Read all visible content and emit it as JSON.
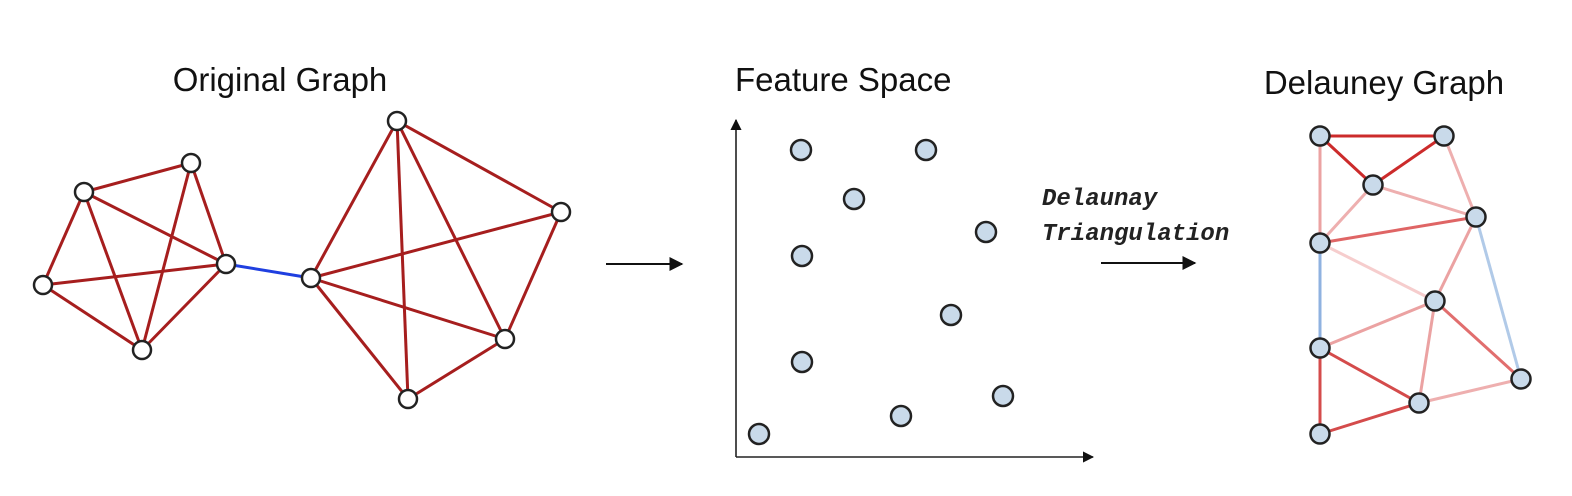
{
  "titles": {
    "original": "Original Graph",
    "feature": "Feature Space",
    "delaunay": "Delauney Graph"
  },
  "operation": {
    "line1": "Delaunay",
    "line2": "Triangulation"
  },
  "colors": {
    "edge_red": "#a61e1e",
    "bridge_blue": "#1f3fe0",
    "node_fill_light": "#c9daea",
    "node_stroke": "#222222",
    "arrow": "#111111"
  },
  "icons": [
    "right-arrow-icon",
    "right-arrow-icon"
  ]
}
